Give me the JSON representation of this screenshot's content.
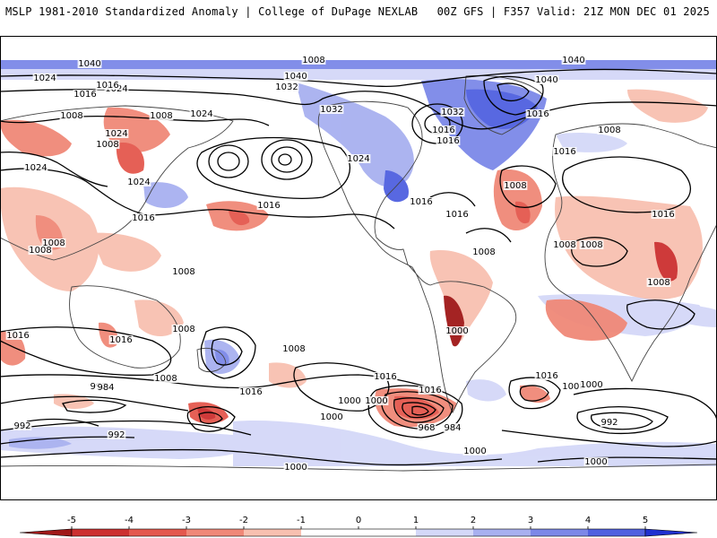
{
  "header": {
    "left_title": "MSLP 1981-2010 Standardized Anomaly | College of DuPage NEXLAB",
    "right_title": "00Z GFS | F357 Valid: 21Z MON DEC 01 2025"
  },
  "colors": {
    "ocean": "#ffffff",
    "frame": "#000000",
    "neg_5": "#a01818",
    "neg_4": "#cc3030",
    "neg_3": "#e4584e",
    "neg_2": "#f08878",
    "neg_1": "#f8c0b0",
    "pos_1": "#d4d8f8",
    "pos_2": "#a8b0f0",
    "pos_3": "#7c88e8",
    "pos_4": "#5060e0",
    "pos_5": "#2030d0"
  },
  "colorbar": {
    "ticks": [
      "-5",
      "-4",
      "-3",
      "-2",
      "-1",
      "0",
      "1",
      "2",
      "3",
      "4",
      "5"
    ],
    "values": [
      -5,
      -4,
      -3,
      -2,
      -1,
      0,
      1,
      2,
      3,
      4,
      5
    ]
  },
  "contour_labels": [
    "1040",
    "1040",
    "1040",
    "1040",
    "1032",
    "1032",
    "1032",
    "1024",
    "1024",
    "1024",
    "1024",
    "1024",
    "1024",
    "1024",
    "1016",
    "1016",
    "1016",
    "1016",
    "1016",
    "1016",
    "1016",
    "1016",
    "1016",
    "1016",
    "1016",
    "1016",
    "1016",
    "1016",
    "1016",
    "1016",
    "1016",
    "1008",
    "1008",
    "1008",
    "1008",
    "1008",
    "1008",
    "1008",
    "1008",
    "1008",
    "1008",
    "1008",
    "1008",
    "1008",
    "1008",
    "1008",
    "1008",
    "1008",
    "1000",
    "1000",
    "1000",
    "1000",
    "1000",
    "1000",
    "1000",
    "1000",
    "992",
    "992",
    "992",
    "992",
    "984",
    "984",
    "968"
  ]
}
